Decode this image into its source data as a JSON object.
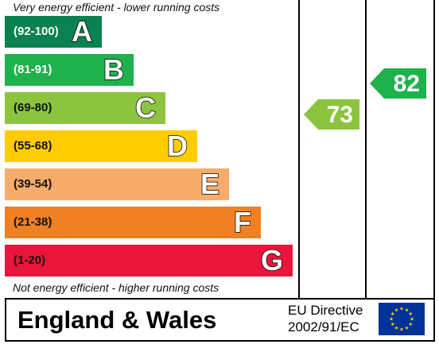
{
  "chart_data": {
    "type": "bar",
    "top_caption": "Very energy efficient - lower running costs",
    "bottom_caption": "Not energy efficient - higher running costs",
    "bands": [
      {
        "letter": "A",
        "range": "(92-100)",
        "color": "#0a8150",
        "text": "light"
      },
      {
        "letter": "B",
        "range": "(81-91)",
        "color": "#1fb14b",
        "text": "light"
      },
      {
        "letter": "C",
        "range": "(69-80)",
        "color": "#8cc43f",
        "text": "dark"
      },
      {
        "letter": "D",
        "range": "(55-68)",
        "color": "#ffcc00",
        "text": "dark"
      },
      {
        "letter": "E",
        "range": "(39-54)",
        "color": "#f7ac6b",
        "text": "dark"
      },
      {
        "letter": "F",
        "range": "(21-38)",
        "color": "#ef8023",
        "text": "dark"
      },
      {
        "letter": "G",
        "range": "(1-20)",
        "color": "#e9153b",
        "text": "dark"
      }
    ],
    "current": {
      "value": 73,
      "label": "73",
      "band": "C",
      "color": "#8cc43f"
    },
    "potential": {
      "value": 82,
      "label": "82",
      "band": "B",
      "color": "#1fb14b"
    }
  },
  "footer": {
    "region": "England & Wales",
    "directive_line1": "EU Directive",
    "directive_line2": "2002/91/EC"
  },
  "flag_icon": "eu-flag-icon"
}
